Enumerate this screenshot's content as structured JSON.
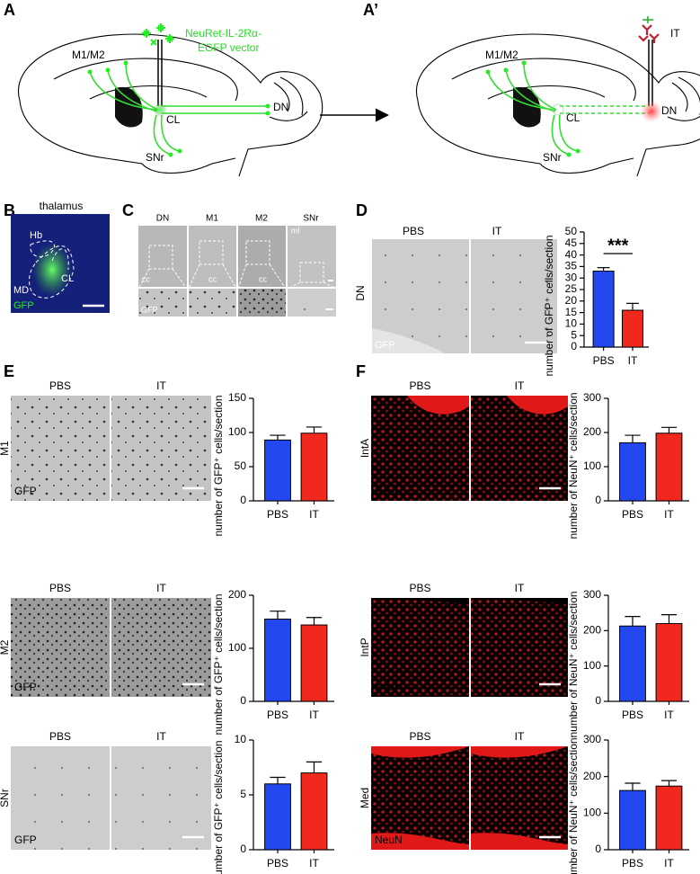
{
  "panel_labels": [
    "A",
    "A’",
    "B",
    "C",
    "D",
    "E",
    "F"
  ],
  "diagram": {
    "vector_label_1": "NeuRet-IL-2Rα-",
    "vector_label_2": "EGFP vector",
    "left_labels": [
      "M1/M2",
      "CL",
      "DN",
      "SNr"
    ],
    "right_labels": [
      "M1/M2",
      "CL",
      "DN",
      "SNr",
      "IT"
    ]
  },
  "panel_b": {
    "title": "thalamus",
    "labels": [
      "Hb",
      "MD",
      "CL",
      "GFP"
    ]
  },
  "panel_c": {
    "columns": [
      "DN",
      "M1",
      "M2",
      "SNr"
    ],
    "labels": [
      "cc",
      "cc",
      "cc",
      "ml",
      "GFP"
    ]
  },
  "panel_d": {
    "columns": [
      "PBS",
      "IT"
    ],
    "row": "DN",
    "stain": "GFP"
  },
  "panel_e": {
    "rows": [
      {
        "columns": [
          "PBS",
          "IT"
        ],
        "row": "M1",
        "stain": "GFP"
      },
      {
        "columns": [
          "PBS",
          "IT"
        ],
        "row": "M2",
        "stain": "GFP"
      },
      {
        "columns": [
          "PBS",
          "IT"
        ],
        "row": "SNr",
        "stain": "GFP"
      }
    ]
  },
  "panel_f": {
    "rows": [
      {
        "columns": [
          "PBS",
          "IT"
        ],
        "row": "IntA",
        "stain": "NeuN"
      },
      {
        "columns": [
          "PBS",
          "IT"
        ],
        "row": "IntP",
        "stain": "NeuN"
      },
      {
        "columns": [
          "PBS",
          "IT"
        ],
        "row": "Med",
        "stain": "NeuN"
      }
    ]
  },
  "chart_data": [
    {
      "type": "bar",
      "ylabel": "number of GFP⁺ cells/section",
      "categories": [
        "PBS",
        "IT"
      ],
      "values": [
        33,
        16
      ],
      "errors": [
        1.5,
        3
      ],
      "colors": [
        "#2348f0",
        "#f0281e"
      ],
      "ylim": [
        0,
        50
      ],
      "yticks": [
        0,
        5,
        10,
        15,
        20,
        25,
        30,
        35,
        40,
        45,
        50
      ],
      "annotation": "***"
    },
    {
      "type": "bar",
      "ylabel": "number of GFP⁺ cells/section",
      "categories": [
        "PBS",
        "IT"
      ],
      "values": [
        89,
        99
      ],
      "errors": [
        7,
        9
      ],
      "colors": [
        "#2348f0",
        "#f0281e"
      ],
      "ylim": [
        0,
        150
      ],
      "yticks": [
        0,
        50,
        100,
        150
      ]
    },
    {
      "type": "bar",
      "ylabel": "number of GFP⁺ cells/section",
      "categories": [
        "PBS",
        "IT"
      ],
      "values": [
        155,
        144
      ],
      "errors": [
        15,
        14
      ],
      "colors": [
        "#2348f0",
        "#f0281e"
      ],
      "ylim": [
        0,
        200
      ],
      "yticks": [
        0,
        100,
        200
      ]
    },
    {
      "type": "bar",
      "ylabel": "number of GFP⁺ cells/section",
      "categories": [
        "PBS",
        "IT"
      ],
      "values": [
        6.0,
        7.0
      ],
      "errors": [
        0.6,
        1.0
      ],
      "colors": [
        "#2348f0",
        "#f0281e"
      ],
      "ylim": [
        0,
        10
      ],
      "yticks": [
        0,
        5,
        10
      ]
    },
    {
      "type": "bar",
      "ylabel": "number of NeuN⁺ cells/section",
      "categories": [
        "PBS",
        "IT"
      ],
      "values": [
        170,
        198
      ],
      "errors": [
        22,
        17
      ],
      "colors": [
        "#2348f0",
        "#f0281e"
      ],
      "ylim": [
        0,
        300
      ],
      "yticks": [
        0,
        100,
        200,
        300
      ]
    },
    {
      "type": "bar",
      "ylabel": "number of NeuN⁺ cells/section",
      "categories": [
        "PBS",
        "IT"
      ],
      "values": [
        213,
        220
      ],
      "errors": [
        27,
        25
      ],
      "colors": [
        "#2348f0",
        "#f0281e"
      ],
      "ylim": [
        0,
        300
      ],
      "yticks": [
        0,
        100,
        200,
        300
      ]
    },
    {
      "type": "bar",
      "ylabel": "number of NeuN⁺ cells/section",
      "categories": [
        "PBS",
        "IT"
      ],
      "values": [
        162,
        174
      ],
      "errors": [
        20,
        15
      ],
      "colors": [
        "#2348f0",
        "#f0281e"
      ],
      "ylim": [
        0,
        300
      ],
      "yticks": [
        0,
        100,
        200,
        300
      ]
    }
  ]
}
